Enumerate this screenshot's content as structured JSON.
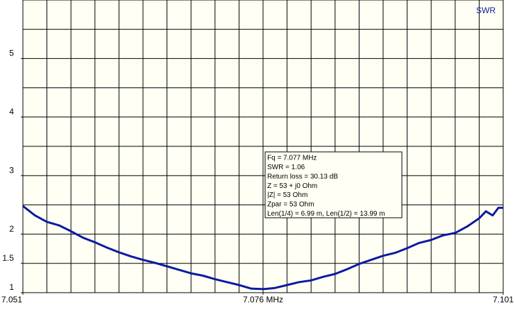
{
  "chart_data": {
    "type": "line",
    "series": [
      {
        "name": "SWR",
        "color": "#0a1aa0",
        "x": [
          7.051,
          7.05225,
          7.0535,
          7.05475,
          7.056,
          7.05725,
          7.0585,
          7.05975,
          7.061,
          7.06225,
          7.0635,
          7.06475,
          7.066,
          7.06725,
          7.0685,
          7.06975,
          7.071,
          7.07225,
          7.0735,
          7.07475,
          7.076,
          7.07725,
          7.0785,
          7.07975,
          7.081,
          7.08225,
          7.0835,
          7.08475,
          7.086,
          7.08725,
          7.0885,
          7.08975,
          7.091,
          7.09225,
          7.0935,
          7.09475,
          7.096,
          7.09725,
          7.0985,
          7.0992,
          7.0999,
          7.1005,
          7.101
        ],
        "values": [
          2.48,
          2.32,
          2.21,
          2.15,
          2.05,
          1.94,
          1.86,
          1.77,
          1.69,
          1.62,
          1.56,
          1.51,
          1.45,
          1.39,
          1.33,
          1.29,
          1.23,
          1.18,
          1.13,
          1.07,
          1.06,
          1.08,
          1.13,
          1.18,
          1.21,
          1.27,
          1.32,
          1.4,
          1.49,
          1.56,
          1.63,
          1.68,
          1.76,
          1.85,
          1.9,
          1.98,
          2.02,
          2.13,
          2.27,
          2.39,
          2.32,
          2.45,
          2.45
        ]
      }
    ],
    "xlim": [
      7.051,
      7.101
    ],
    "xticks": [
      7.051,
      {
        "value": 7.076,
        "label": "7.076 MHz"
      },
      7.101
    ],
    "ylim": [
      1,
      6
    ],
    "yticks": [
      1,
      1.5,
      2,
      3,
      4,
      5
    ],
    "xgrid_step": 0.0025,
    "ygrid_step": 0.5,
    "grid": true,
    "info_box": [
      "Fq = 7.077 MHz",
      "SWR = 1.06",
      "Return loss = 30.13 dB",
      "Z = 53 + j0 Ohm",
      "|Z| = 53 Ohm",
      "Zpar = 53 Ohm",
      "Len(1/4) = 6.99 m, Len(1/2) = 13.99 m"
    ]
  }
}
